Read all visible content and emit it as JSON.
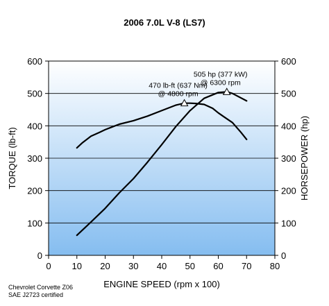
{
  "chart_data": {
    "type": "line",
    "title": "2006 7.0L V-8 (LS7)",
    "xlabel": "ENGINE SPEED (rpm x 100)",
    "ylabel_left": "TORQUE (lb-ft)",
    "ylabel_right": "HORSEPOWER (hp)",
    "xlim": [
      0,
      80
    ],
    "ylim_left": [
      0,
      600
    ],
    "ylim_right": [
      0,
      600
    ],
    "x_ticks": [
      "0",
      "10",
      "20",
      "30",
      "40",
      "50",
      "60",
      "70",
      "80"
    ],
    "y_ticks_left": [
      "0",
      "100",
      "200",
      "300",
      "400",
      "500",
      "600"
    ],
    "y_ticks_right": [
      "0",
      "100",
      "200",
      "300",
      "400",
      "500",
      "600"
    ],
    "grid": true,
    "series": [
      {
        "axis": "left",
        "x": [
          10,
          12,
          15,
          18,
          20,
          22,
          25,
          30,
          35,
          40,
          45,
          48,
          50,
          52,
          55,
          58,
          60,
          62,
          65,
          68,
          70
        ],
        "values": [
          332,
          348,
          368,
          380,
          388,
          395,
          405,
          416,
          430,
          447,
          464,
          470,
          470,
          469,
          466,
          454,
          440,
          428,
          410,
          380,
          358
        ]
      },
      {
        "axis": "right",
        "x": [
          10,
          15,
          20,
          25,
          30,
          35,
          40,
          45,
          50,
          55,
          60,
          63,
          65,
          70
        ],
        "values": [
          62,
          103,
          145,
          193,
          237,
          288,
          342,
          398,
          447,
          485,
          503,
          505,
          500,
          477
        ]
      }
    ],
    "annotations": [
      {
        "id": "torque-peak",
        "line1": "470 lb-ft (637 Nm)",
        "line2": "@ 4800 rpm",
        "x": 48,
        "y": 470,
        "axis": "left"
      },
      {
        "id": "hp-peak",
        "line1": "505 hp (377 kW)",
        "line2": "@ 6300 rpm",
        "x": 63,
        "y": 505,
        "axis": "right"
      }
    ],
    "footnote": [
      "Chevrolet Corvette Z06",
      "SAE J2723 certified"
    ]
  }
}
